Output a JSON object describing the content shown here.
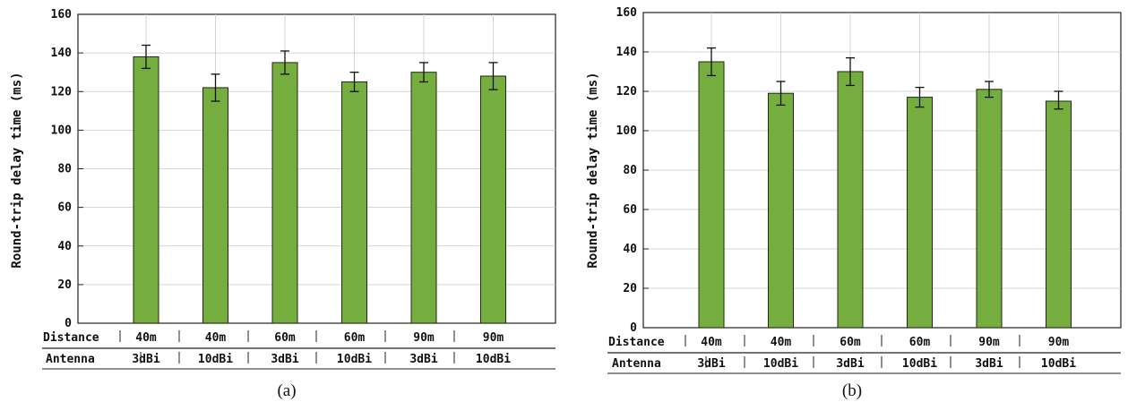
{
  "chart_data": [
    {
      "type": "bar",
      "caption": "(a)",
      "ylabel": "Round-trip delay time (ms)",
      "ylim": [
        0,
        160
      ],
      "yticks": [
        0,
        20,
        40,
        60,
        80,
        100,
        120,
        140,
        160
      ],
      "categories": [
        "40m 3dBi",
        "40m 10dBi",
        "60m 3dBi",
        "60m 10dBi",
        "90m 3dBi",
        "90m 10dBi"
      ],
      "rows": [
        {
          "label": "Distance",
          "values": [
            "40m",
            "40m",
            "60m",
            "60m",
            "90m",
            "90m"
          ]
        },
        {
          "label": "Antenna",
          "values": [
            "3dBi",
            "10dBi",
            "3dBi",
            "10dBi",
            "3dBi",
            "10dBi"
          ]
        }
      ],
      "values": [
        138,
        122,
        135,
        125,
        130,
        128
      ],
      "error_low": [
        132,
        115,
        129,
        120,
        125,
        121
      ],
      "error_high": [
        144,
        129,
        141,
        130,
        135,
        135
      ],
      "bar_color": "#76ad3f",
      "grid": true
    },
    {
      "type": "bar",
      "caption": "(b)",
      "ylabel": "Round-trip delay time (ms)",
      "ylim": [
        0,
        160
      ],
      "yticks": [
        0,
        20,
        40,
        60,
        80,
        100,
        120,
        140,
        160
      ],
      "categories": [
        "40m 3dBi",
        "40m 10dBi",
        "60m 3dBi",
        "60m 10dBi",
        "90m 3dBi",
        "90m 10dBi"
      ],
      "rows": [
        {
          "label": "Distance",
          "values": [
            "40m",
            "40m",
            "60m",
            "60m",
            "90m",
            "90m"
          ]
        },
        {
          "label": "Antenna",
          "values": [
            "3dBi",
            "10dBi",
            "3dBi",
            "10dBi",
            "3dBi",
            "10dBi"
          ]
        }
      ],
      "values": [
        135,
        119,
        130,
        117,
        121,
        115
      ],
      "error_low": [
        128,
        113,
        123,
        112,
        117,
        111
      ],
      "error_high": [
        142,
        125,
        137,
        122,
        125,
        120
      ],
      "bar_color": "#76ad3f",
      "grid": true
    }
  ]
}
